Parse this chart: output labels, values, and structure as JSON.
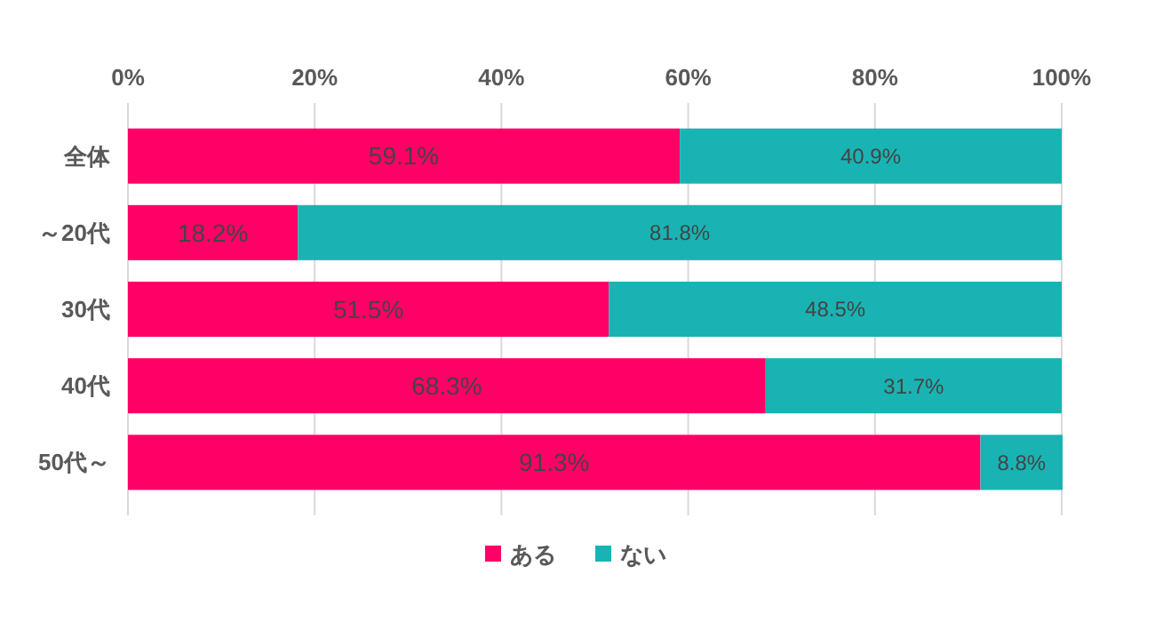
{
  "chart_data": {
    "type": "bar",
    "orientation": "horizontal",
    "stacked": true,
    "categories": [
      "全体",
      "～20代",
      "30代",
      "40代",
      "50代～"
    ],
    "series": [
      {
        "name": "ある",
        "color": "#ff0066",
        "values": [
          59.1,
          18.2,
          51.5,
          68.3,
          91.3
        ],
        "value_labels": [
          "59.1%",
          "18.2%",
          "51.5%",
          "68.3%",
          "91.3%"
        ]
      },
      {
        "name": "ない",
        "color": "#1ab3b3",
        "values": [
          40.9,
          81.8,
          48.5,
          31.7,
          8.8
        ],
        "value_labels": [
          "40.9%",
          "81.8%",
          "48.5%",
          "31.7%",
          "8.8%"
        ]
      }
    ],
    "xlim": [
      0,
      100.1
    ],
    "xticks": [
      {
        "value": 0,
        "label": "0%"
      },
      {
        "value": 20,
        "label": "20%"
      },
      {
        "value": 40,
        "label": "40%"
      },
      {
        "value": 60,
        "label": "60%"
      },
      {
        "value": 80,
        "label": "80%"
      },
      {
        "value": 100,
        "label": "100%"
      }
    ],
    "grid": "x",
    "legend": "bottom"
  }
}
